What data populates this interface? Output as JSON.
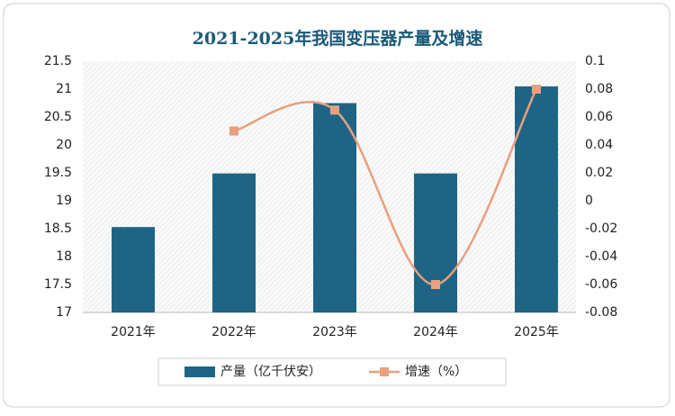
{
  "chart_data": {
    "type": "bar",
    "title": "2021-2025年我国变压器产量及增速",
    "categories": [
      "2021年",
      "2022年",
      "2023年",
      "2024年",
      "2025年"
    ],
    "series": [
      {
        "name": "产量（亿千伏安）",
        "type": "bar",
        "color": "#1e6585",
        "values": [
          18.53,
          19.49,
          20.75,
          19.49,
          21.05
        ]
      },
      {
        "name": "增速（%）",
        "type": "line",
        "axis": "y2",
        "color": "#e8a07f",
        "values": [
          null,
          0.05,
          0.065,
          -0.06,
          0.08
        ]
      }
    ],
    "ylim": [
      17,
      21.5
    ],
    "yticks": [
      17,
      17.5,
      18,
      18.5,
      19,
      19.5,
      20,
      20.5,
      21,
      21.5
    ],
    "y2lim": [
      -0.08,
      0.1
    ],
    "y2ticks": [
      -0.08,
      -0.06,
      -0.04,
      -0.02,
      0,
      0.02,
      0.04,
      0.06,
      0.08,
      0.1
    ],
    "legend": "bottom"
  }
}
